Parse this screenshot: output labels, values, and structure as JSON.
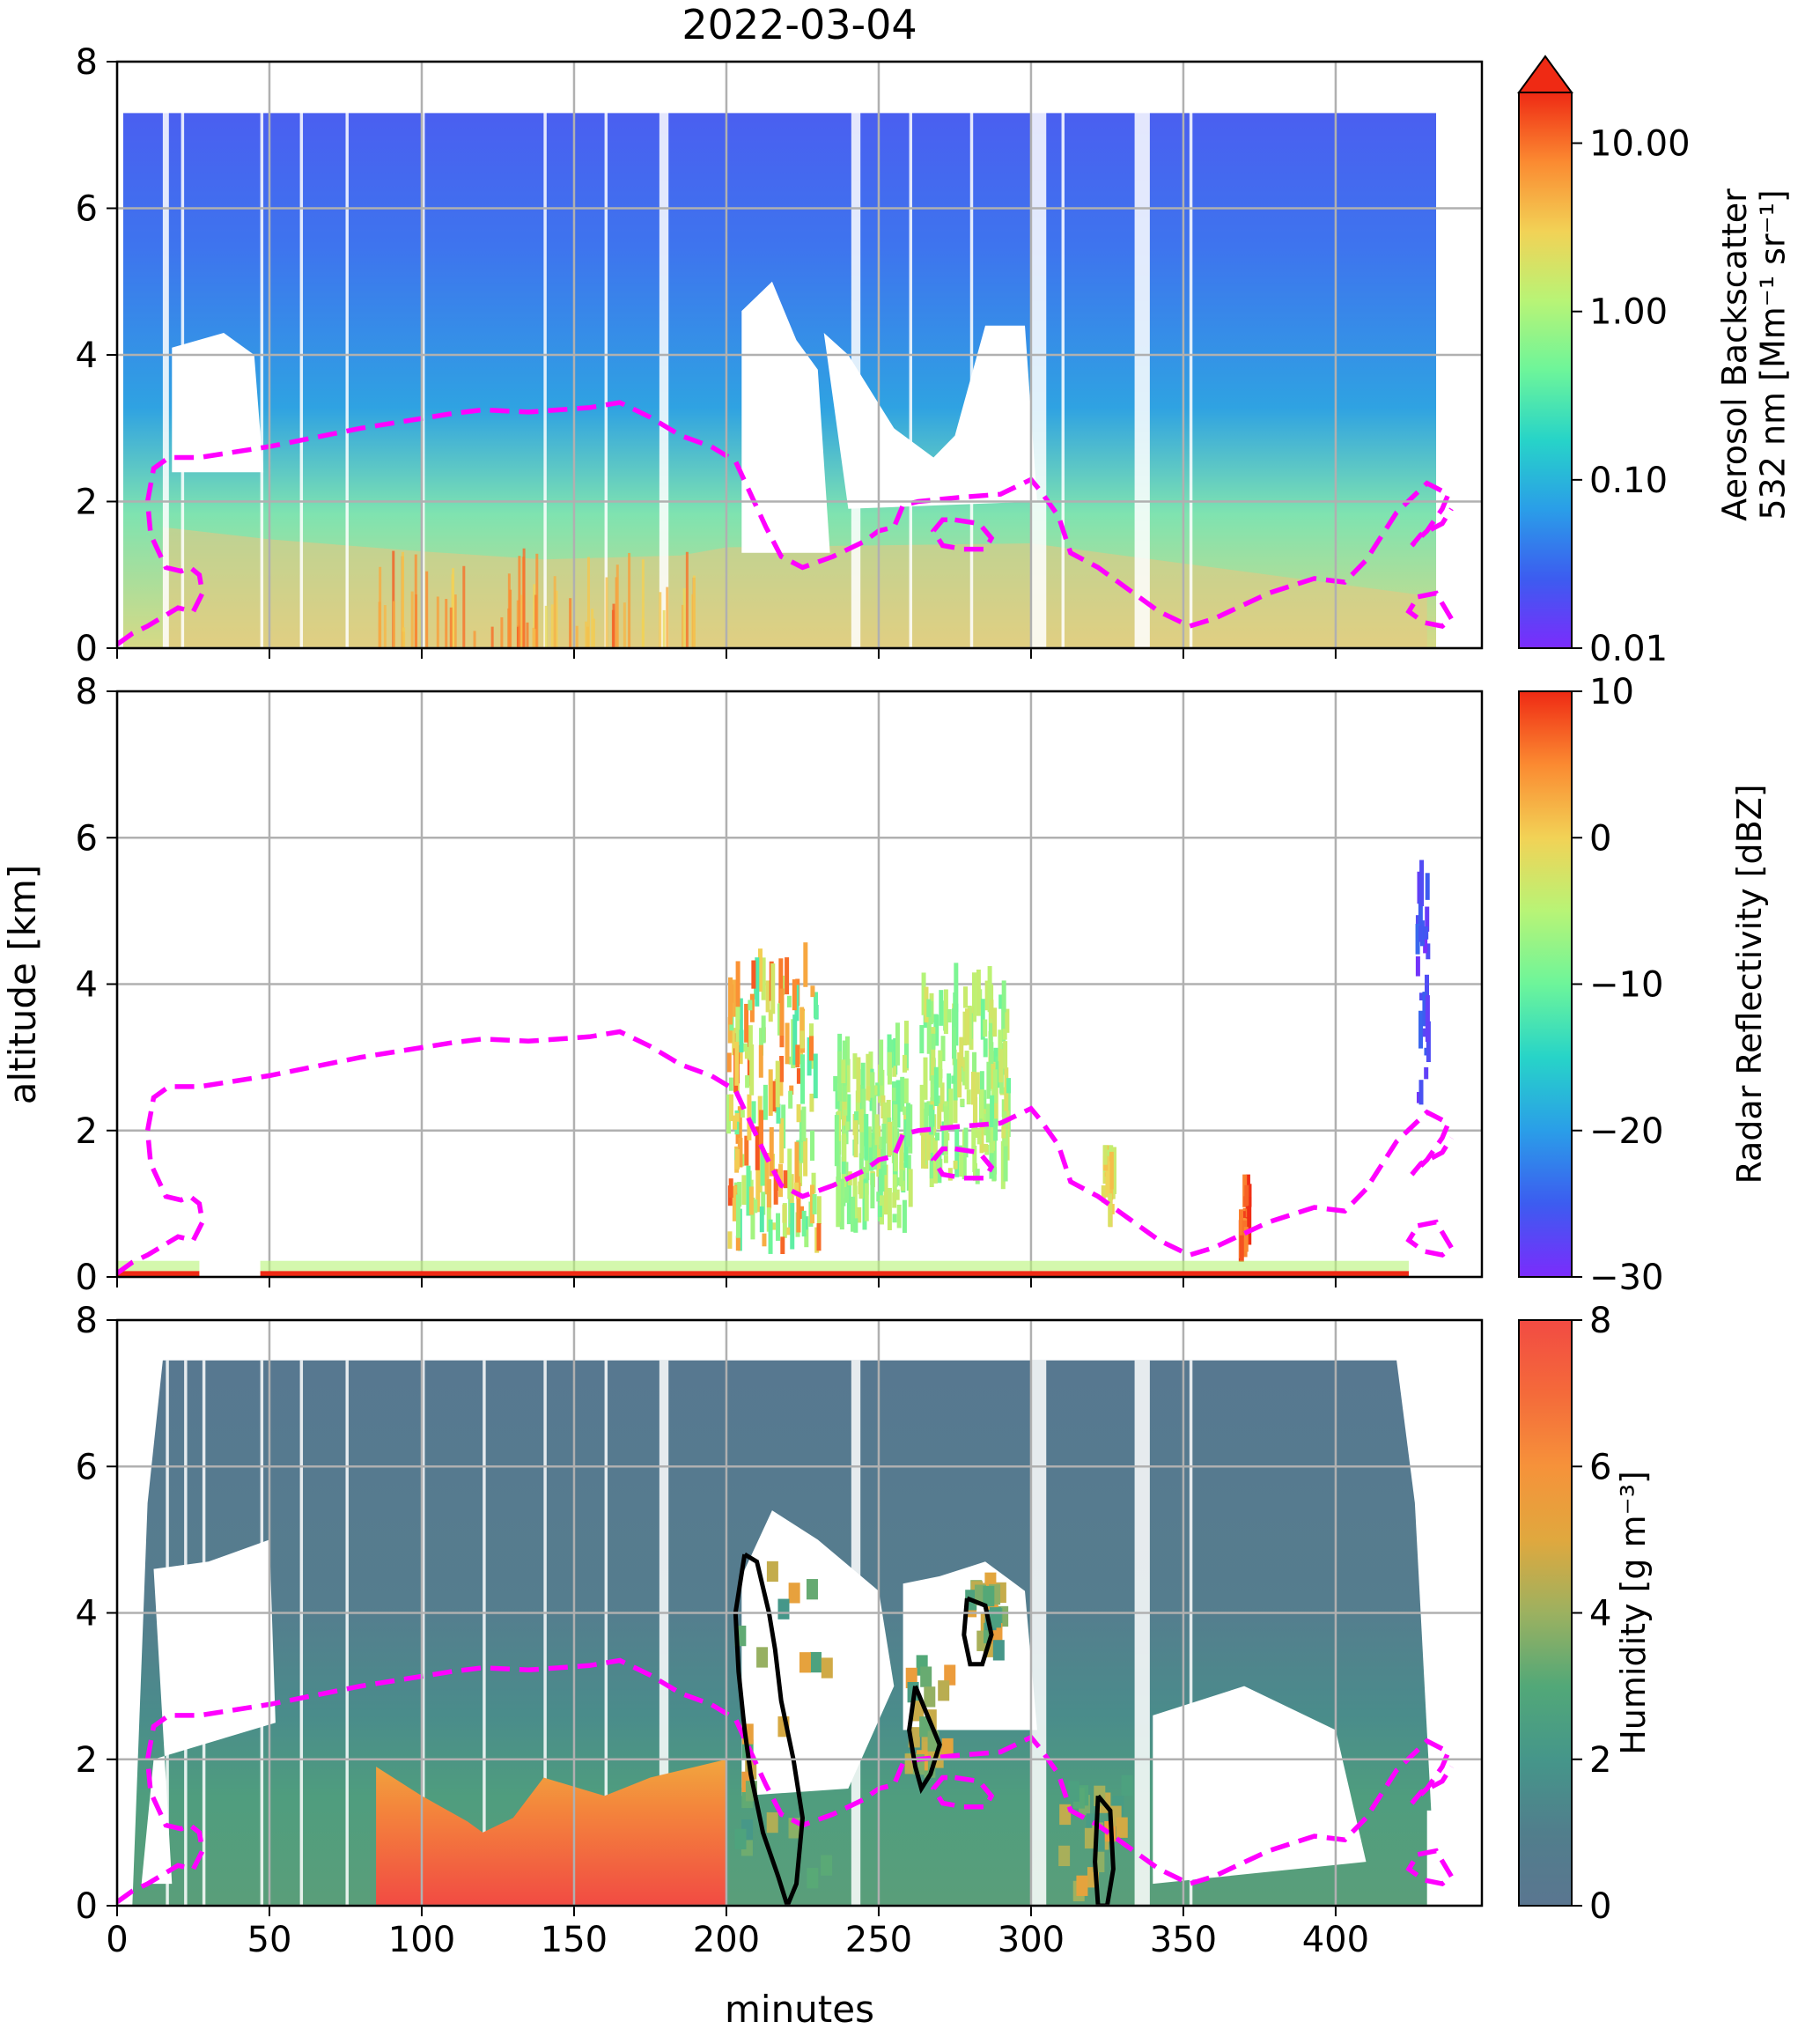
{
  "chart_data": {
    "type": "heatmap",
    "title": "2022-03-04",
    "xlabel": "minutes",
    "ylabel": "altitude [km]",
    "xlim": [
      0,
      448
    ],
    "ylim": [
      0,
      8
    ],
    "x_ticks": [
      "0",
      "50",
      "100",
      "150",
      "200",
      "250",
      "300",
      "350",
      "400"
    ],
    "y_ticks": [
      "0",
      "2",
      "4",
      "6",
      "8"
    ],
    "grid": true,
    "dashed_contour": {
      "color": "#ff00ff",
      "x": [
        0,
        5,
        10,
        16,
        20,
        25,
        28,
        27,
        24,
        21,
        16,
        11,
        10,
        12,
        17,
        27,
        50,
        80,
        110,
        120,
        135,
        155,
        165,
        175,
        185,
        195,
        203,
        208,
        213,
        218,
        225,
        235,
        245,
        250,
        255,
        258,
        263,
        275,
        290,
        300,
        303,
        309,
        313,
        322,
        342,
        352,
        360,
        378,
        393,
        403,
        410,
        420,
        430,
        437,
        435,
        430,
        425,
        428,
        435,
        438
      ],
      "y": [
        0.05,
        0.2,
        0.3,
        0.45,
        0.55,
        0.5,
        0.75,
        1.0,
        1.1,
        1.05,
        1.1,
        1.55,
        2.0,
        2.45,
        2.6,
        2.6,
        2.75,
        3.0,
        3.2,
        3.25,
        3.22,
        3.28,
        3.35,
        3.15,
        2.9,
        2.75,
        2.55,
        2.1,
        1.65,
        1.25,
        1.1,
        1.25,
        1.45,
        1.6,
        1.65,
        1.95,
        2.0,
        2.05,
        2.1,
        2.3,
        2.15,
        1.8,
        1.3,
        1.1,
        0.5,
        0.3,
        0.4,
        0.75,
        0.95,
        0.9,
        1.2,
        1.85,
        2.25,
        2.1,
        1.9,
        1.6,
        1.4,
        1.55,
        1.7,
        1.9
      ]
    },
    "dashed_small_loops": [
      {
        "x": [
          275,
          283,
          287,
          285,
          278,
          271,
          268,
          271,
          275
        ],
        "y": [
          1.75,
          1.7,
          1.5,
          1.35,
          1.35,
          1.4,
          1.6,
          1.75,
          1.75
        ]
      },
      {
        "x": [
          427,
          433,
          438,
          435,
          429,
          424,
          427
        ],
        "y": [
          0.7,
          0.75,
          0.4,
          0.3,
          0.35,
          0.5,
          0.7
        ]
      }
    ],
    "panels": [
      {
        "name": "aerosol_backscatter",
        "colorbar": {
          "label_line1": "Aerosol Backscatter",
          "label_line2": "532 nm [Mm⁻¹ sr⁻¹]",
          "ticks": [
            "0.01",
            "0.10",
            "1.00",
            "10.00"
          ],
          "scale": "log",
          "range": [
            0.01,
            20
          ],
          "extend": "max",
          "colormap": [
            "#7b2cfc",
            "#3c5cf0",
            "#2a9ee8",
            "#27d4c8",
            "#6df59a",
            "#b8f476",
            "#f2d256",
            "#fb8a31",
            "#ef2a14"
          ]
        },
        "data_extent_x": [
          2,
          433
        ],
        "top_km": 7.3,
        "boundary_layer_top_km": [
          [
            15,
            3.0
          ],
          [
            50,
            2.7
          ],
          [
            100,
            2.4
          ],
          [
            140,
            2.2
          ],
          [
            185,
            2.3
          ],
          [
            200,
            2.5
          ],
          [
            300,
            2.6
          ],
          [
            340,
            2.2
          ],
          [
            380,
            1.8
          ],
          [
            430,
            1.3
          ]
        ],
        "gaps_x": [
          [
            205,
            255
          ],
          [
            300,
            335
          ],
          [
            340,
            350
          ]
        ]
      },
      {
        "name": "radar_reflectivity",
        "colorbar": {
          "label": "Radar Reflectivity [dBZ]",
          "ticks": [
            "−30",
            "−20",
            "−10",
            "0",
            "10"
          ],
          "scale": "linear",
          "range": [
            -30,
            10
          ],
          "colormap": [
            "#7b2cfc",
            "#3c5cf0",
            "#2a9ee8",
            "#27d4c8",
            "#6df59a",
            "#b8f476",
            "#f2d256",
            "#fb8a31",
            "#ef2a14"
          ]
        },
        "echo_regions": [
          {
            "x": [
              200,
              230
            ],
            "y": [
              0.3,
              4.9
            ],
            "level": "mixed"
          },
          {
            "x": [
              235,
              260
            ],
            "y": [
              0.6,
              3.5
            ],
            "level": "low"
          },
          {
            "x": [
              263,
              292
            ],
            "y": [
              1.2,
              4.3
            ],
            "level": "low"
          },
          {
            "x": [
              323,
              327
            ],
            "y": [
              0.6,
              1.8
            ],
            "level": "mid"
          },
          {
            "x": [
              368,
              371
            ],
            "y": [
              0.2,
              1.4
            ],
            "level": "high"
          },
          {
            "x": [
              426,
              430
            ],
            "y": [
              2.2,
              6.3
            ],
            "level": "very-low"
          }
        ],
        "surface_clutter_x": [
          [
            0,
            27
          ],
          [
            47,
            424
          ]
        ]
      },
      {
        "name": "humidity",
        "colorbar": {
          "label": "Humidity [g m⁻³]",
          "ticks": [
            "0",
            "2",
            "4",
            "6",
            "8"
          ],
          "scale": "linear",
          "range": [
            0,
            8
          ],
          "colormap": [
            "#5a7690",
            "#517e8c",
            "#45968a",
            "#52a878",
            "#9cb160",
            "#e0a83e",
            "#f6923a",
            "#f46a3a",
            "#f24b43"
          ]
        },
        "data_extent_x": [
          2,
          433
        ],
        "top_km": 7.45,
        "moist_layer": [
          [
            85,
            1.9
          ],
          [
            100,
            1.5
          ],
          [
            115,
            1.15
          ],
          [
            120,
            1.0
          ],
          [
            130,
            1.2
          ],
          [
            140,
            1.75
          ],
          [
            160,
            1.5
          ],
          [
            175,
            1.75
          ],
          [
            190,
            1.9
          ],
          [
            200,
            2.0
          ]
        ],
        "solid_contours": [
          {
            "x": [
              206,
              210,
              214,
              216,
              218,
              222,
              225,
              223,
              220,
              217,
              212,
              208,
              206,
              204,
              203,
              206
            ],
            "y": [
              4.8,
              4.7,
              4.0,
              3.5,
              2.8,
              2.0,
              1.2,
              0.3,
              0.0,
              0.4,
              1.0,
              1.8,
              2.4,
              3.2,
              4.0,
              4.8
            ]
          },
          {
            "x": [
              262,
              266,
              270,
              267,
              264,
              262,
              260,
              262
            ],
            "y": [
              3.0,
              2.6,
              2.2,
              1.8,
              1.6,
              1.9,
              2.4,
              3.0
            ]
          },
          {
            "x": [
              279,
              285,
              287,
              284,
              280,
              278,
              279
            ],
            "y": [
              4.2,
              4.1,
              3.7,
              3.3,
              3.3,
              3.7,
              4.2
            ]
          },
          {
            "x": [
              322,
              326,
              327,
              325,
              322,
              321,
              322
            ],
            "y": [
              1.5,
              1.3,
              0.5,
              0.0,
              0.0,
              0.6,
              1.5
            ]
          }
        ]
      }
    ]
  }
}
